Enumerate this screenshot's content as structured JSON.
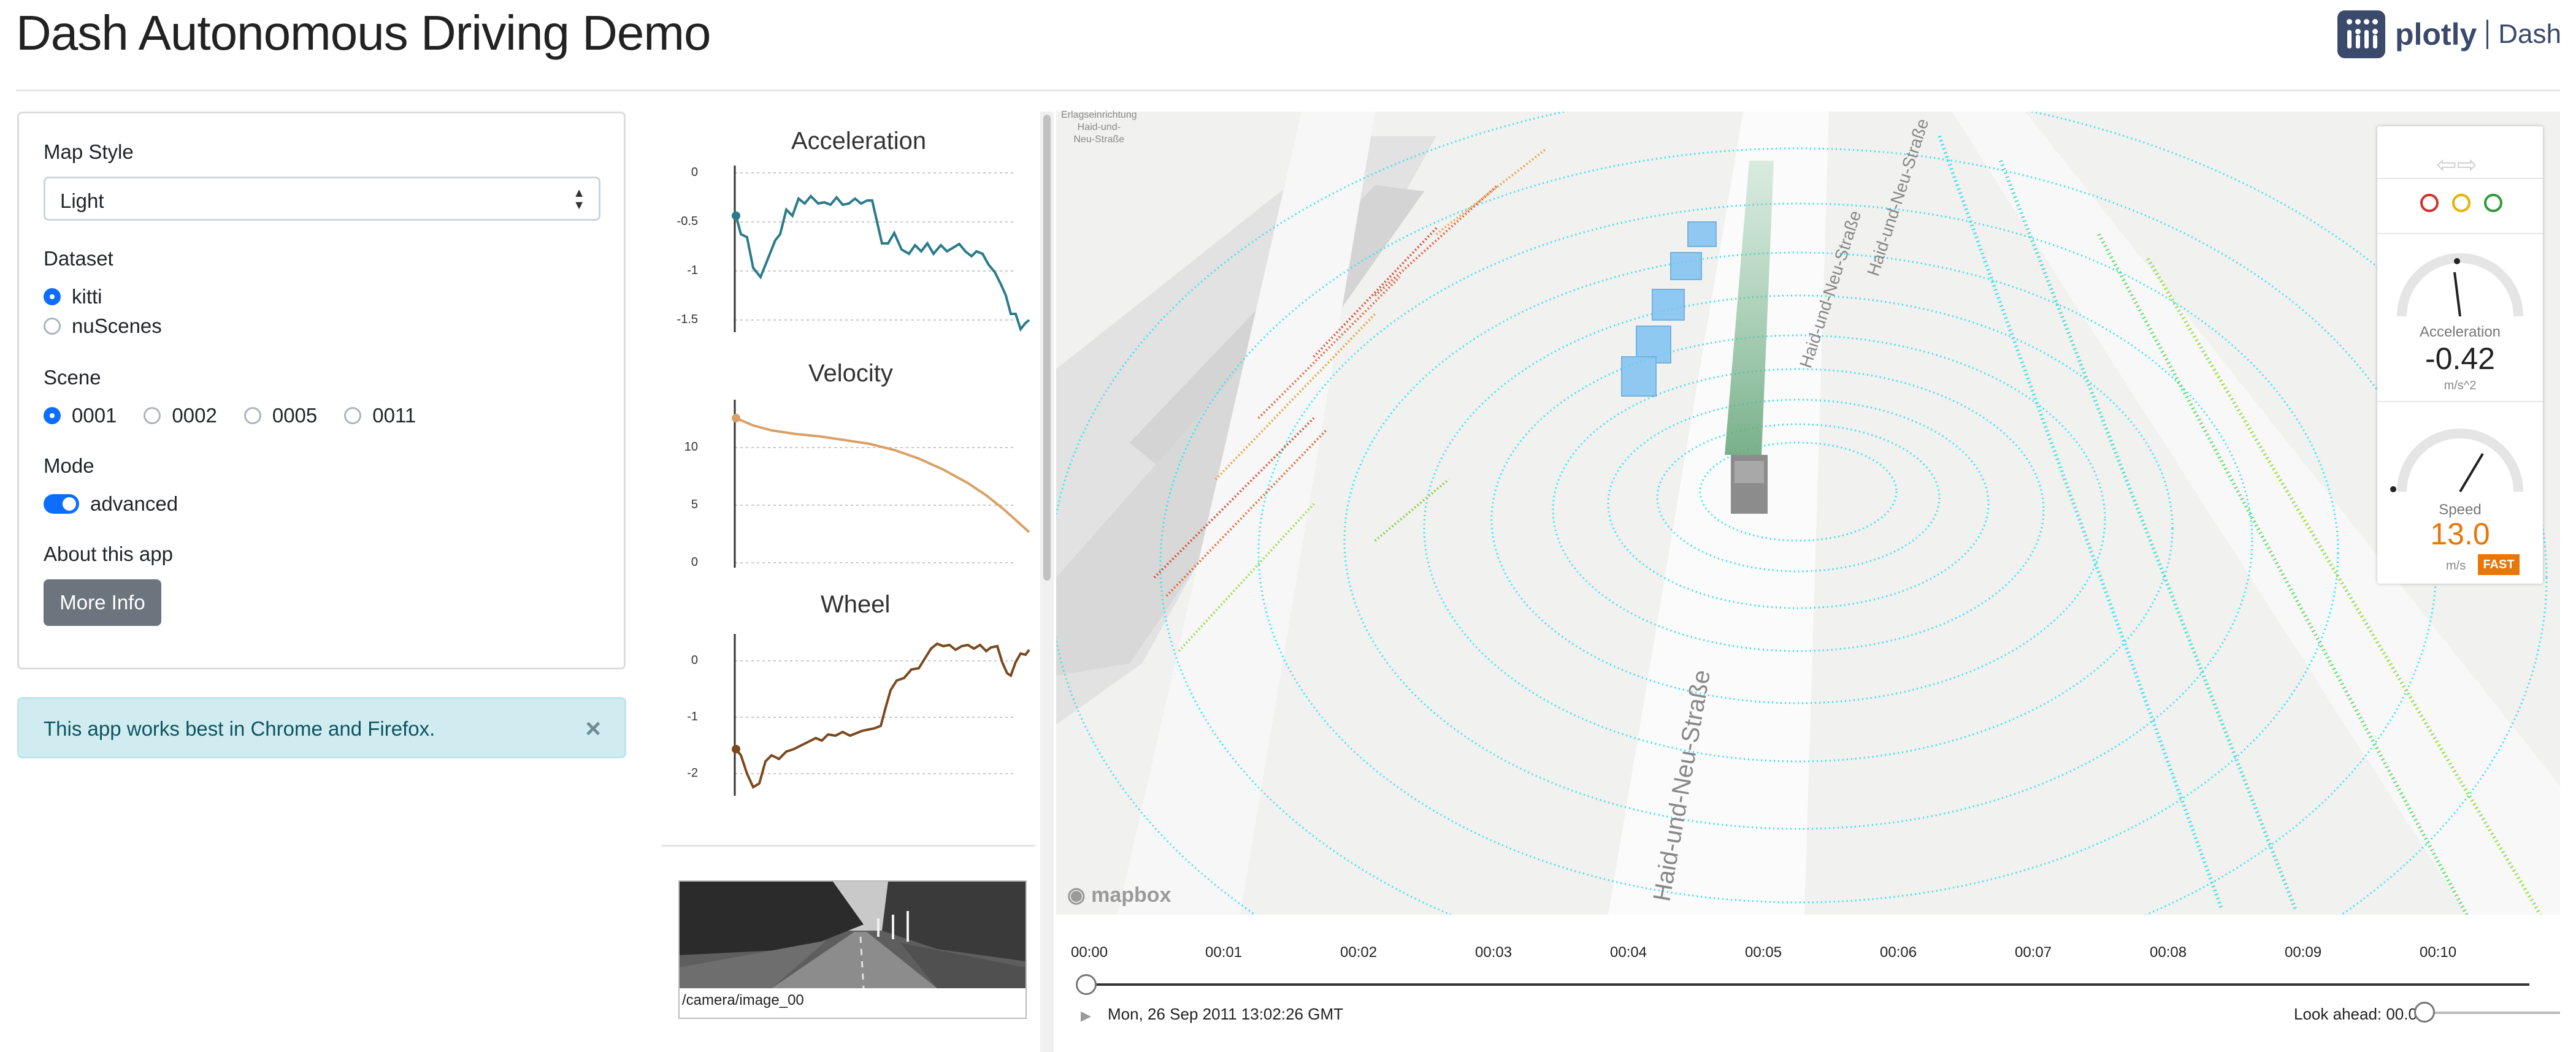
{
  "header": {
    "title": "Dash Autonomous Driving Demo",
    "logo_word": "plotly",
    "logo_product": "Dash"
  },
  "controls": {
    "map_style": {
      "label": "Map Style",
      "value": "Light"
    },
    "dataset": {
      "label": "Dataset",
      "options": [
        {
          "label": "kitti",
          "selected": true
        },
        {
          "label": "nuScenes",
          "selected": false
        }
      ]
    },
    "scene": {
      "label": "Scene",
      "options": [
        {
          "label": "0001",
          "selected": true
        },
        {
          "label": "0002",
          "selected": false
        },
        {
          "label": "0005",
          "selected": false
        },
        {
          "label": "0011",
          "selected": false
        }
      ]
    },
    "mode": {
      "label": "Mode",
      "toggle_label": "advanced",
      "on": true
    },
    "about": {
      "label": "About this app",
      "button": "More Info"
    }
  },
  "alert": {
    "text": "This app works best in Chrome and Firefox.",
    "close": "×"
  },
  "charts": {
    "acceleration": {
      "title": "Acceleration",
      "color": "#2a7b8a",
      "yticks": [
        "0",
        "-0.5",
        "-1",
        "-1.5"
      ]
    },
    "velocity": {
      "title": "Velocity",
      "color": "#d9a066",
      "yticks": [
        "10",
        "5",
        "0"
      ]
    },
    "wheel": {
      "title": "Wheel",
      "color": "#7a4a1e",
      "yticks": [
        "0",
        "-1",
        "-2"
      ]
    }
  },
  "camera": {
    "caption": "/camera/image_00"
  },
  "map": {
    "credit": "Erlagseinrichtung\nHaid-und-\nNeu-Straße",
    "street_labels": [
      "Haid-und-Neu-Straße",
      "Haid-und-Neu-Straße",
      "Haid-und-Neu-Straße"
    ],
    "attribution": "mapbox"
  },
  "meters": {
    "acceleration": {
      "label": "Acceleration",
      "value": "-0.42",
      "unit": "m/s^2"
    },
    "speed": {
      "label": "Speed",
      "value": "13.0",
      "unit": "m/s",
      "badge": "FAST",
      "color": "#e8770a"
    },
    "traffic_light_colors": [
      "#d0312d",
      "#e8b100",
      "#2e9b3a"
    ]
  },
  "timeline": {
    "ticks": [
      "00:00",
      "00:01",
      "00:02",
      "00:03",
      "00:04",
      "00:05",
      "00:06",
      "00:07",
      "00:08",
      "00:09",
      "00:10"
    ],
    "position": 0,
    "play_icon": "▶",
    "timestamp": "Mon, 26 Sep 2011 13:02:26 GMT",
    "lookahead_label": "Look ahead: 00.0"
  }
}
